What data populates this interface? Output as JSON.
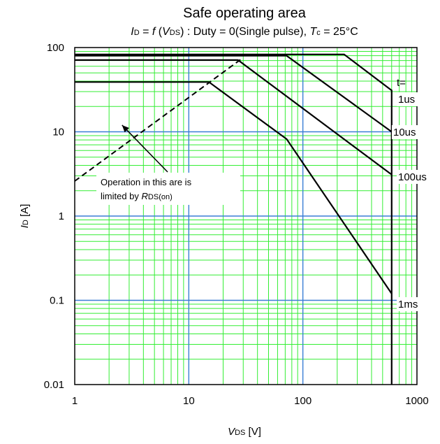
{
  "chart_data": {
    "type": "line",
    "title": "Safe operating area",
    "subtitle": {
      "i": "I",
      "d_sub": "D",
      "eq": " = ",
      "f": "f",
      "open": " (",
      "v": "V",
      "ds_sub": "DS",
      "rest": ") : Duty = 0(Single pulse), ",
      "t": "T",
      "c_sub": "c",
      "temp": " = 25°C"
    },
    "xlabel": {
      "sym": "V",
      "sub": "DS",
      "unit": " [V]"
    },
    "ylabel": {
      "sym": "I",
      "sub": "D",
      "unit": " [A]"
    },
    "x_scale": "log",
    "y_scale": "log",
    "xlim": [
      1,
      1000
    ],
    "ylim": [
      0.01,
      100
    ],
    "x_ticks": [
      "1",
      "10",
      "100",
      "1000"
    ],
    "y_ticks": [
      "100",
      "10",
      "1",
      "0.1",
      "0.01"
    ],
    "grid": true,
    "legend_heading": "t=",
    "series": [
      {
        "name": "1us",
        "x": [
          1,
          230,
          600,
          600
        ],
        "y": [
          83,
          83,
          31,
          0.01
        ]
      },
      {
        "name": "10us",
        "x": [
          1,
          72,
          600
        ],
        "y": [
          80,
          80,
          10
        ]
      },
      {
        "name": "100us",
        "x": [
          1,
          27,
          600
        ],
        "y": [
          71,
          71,
          3.1
        ]
      },
      {
        "name": "1ms",
        "x": [
          1,
          15,
          72,
          600
        ],
        "y": [
          39,
          39,
          8.2,
          0.12
        ]
      }
    ],
    "rds_limit_line": {
      "x": [
        1,
        30
      ],
      "y": [
        2.6,
        76
      ]
    },
    "annotation": {
      "line1": "Operation in this are is",
      "line2_prefix": "limited by ",
      "r_sym": "R",
      "r_sub": "DS(on)",
      "point_at": [
        2.6,
        12
      ]
    },
    "colors": {
      "minor_grid": "#33ee33",
      "major_grid": "#3a7fd5",
      "curve": "#000000",
      "background": "#ffffff"
    }
  }
}
